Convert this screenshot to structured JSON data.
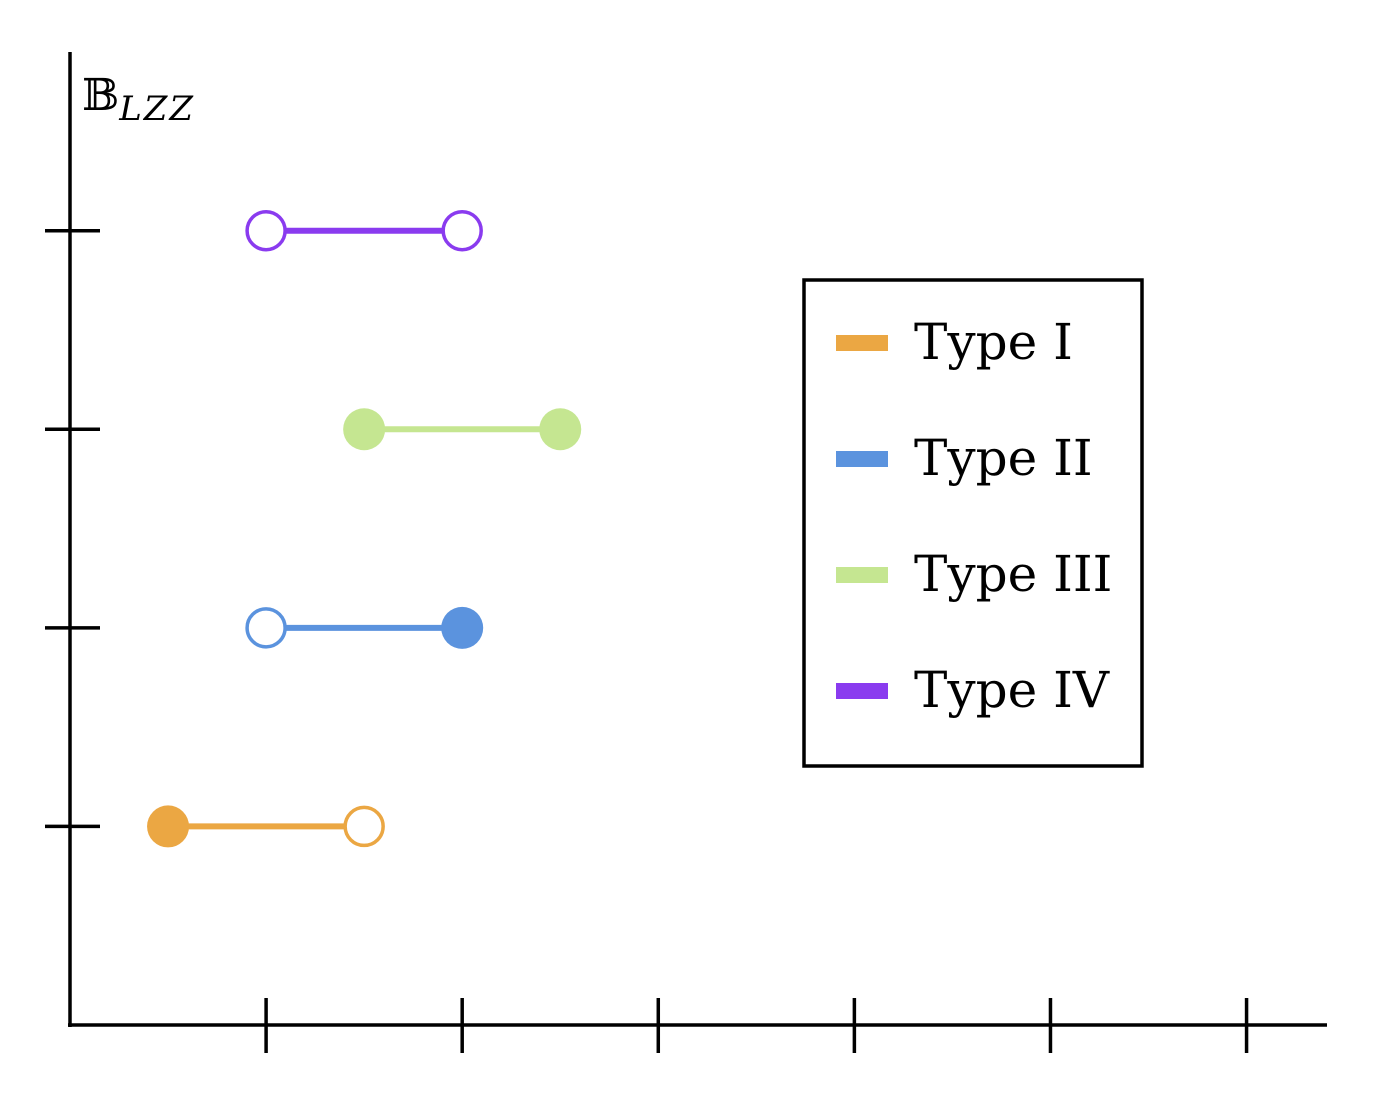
{
  "chart_data": {
    "type": "interval",
    "ylabel_symbol": "𝔹",
    "ylabel_subscript": "LZZ",
    "x_ticks": [
      1,
      2,
      3,
      4,
      5,
      6
    ],
    "xlim": [
      0,
      6.4
    ],
    "y_ticks": [
      1,
      2,
      3,
      4
    ],
    "ylim": [
      0,
      4.9
    ],
    "grid": false,
    "legend_position": "right",
    "series": [
      {
        "name": "Type I",
        "color": "#EBA743",
        "y": 1,
        "start": 0.5,
        "end": 1.5,
        "start_closed": true,
        "end_closed": false
      },
      {
        "name": "Type II",
        "color": "#5B93DE",
        "y": 2,
        "start": 1,
        "end": 2,
        "start_closed": false,
        "end_closed": true
      },
      {
        "name": "Type III",
        "color": "#C5E691",
        "y": 3,
        "start": 1.5,
        "end": 2.5,
        "start_closed": true,
        "end_closed": true
      },
      {
        "name": "Type IV",
        "color": "#8A3BEF",
        "y": 4,
        "start": 1,
        "end": 2,
        "start_closed": false,
        "end_closed": false
      }
    ]
  }
}
